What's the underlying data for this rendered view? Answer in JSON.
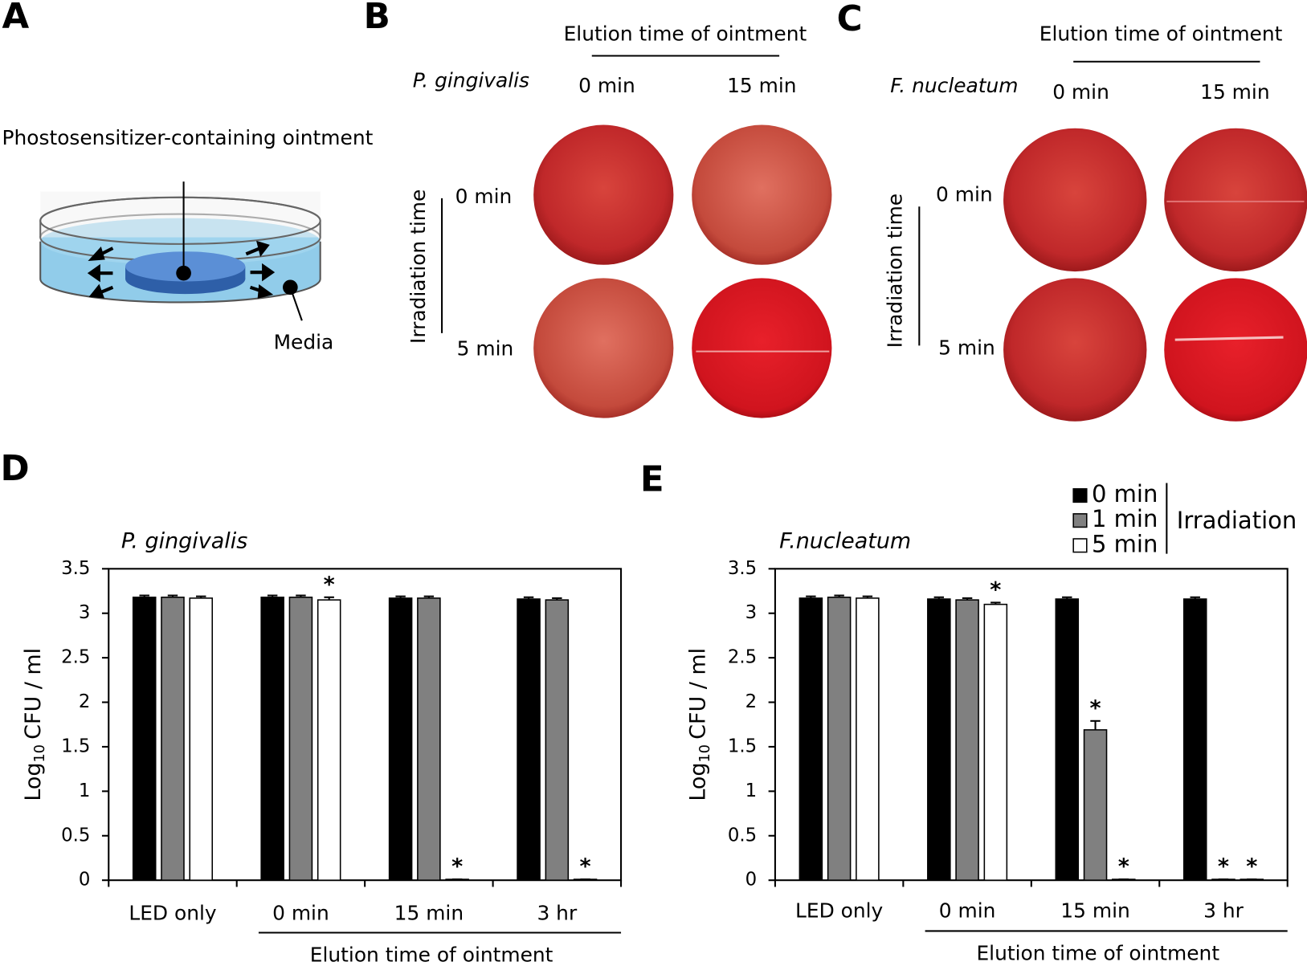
{
  "panel_labels": [
    "A",
    "B",
    "C",
    "D",
    "E"
  ],
  "diagram": {
    "title": "Phostosensitizer-containing ointment",
    "media": "Media"
  },
  "plates": [
    {
      "organism": "P. gingivalis",
      "column_title": "Elution time of ointment",
      "columns": [
        "0 min",
        "15 min"
      ],
      "row_title": "Irradiation time",
      "rows": [
        "0 min",
        "5 min"
      ]
    },
    {
      "organism": "F. nucleatum",
      "column_title": "Elution time of ointment",
      "columns": [
        "0 min",
        "15 min"
      ],
      "row_title": "Irradiation time",
      "rows": [
        "0 min",
        "5 min"
      ]
    }
  ],
  "chart_data": [
    {
      "type": "bar",
      "title": "P. gingivalis",
      "ylabel": {
        "main": "Log",
        "sub": "10",
        "rest": "CFU / ml"
      },
      "categories": [
        "LED only",
        "0 min",
        "15 min",
        "3 hr"
      ],
      "group_label": "Elution time of ointment",
      "ylim": [
        0,
        3.5
      ],
      "yticks": [
        0,
        0.5,
        1,
        1.5,
        2,
        2.5,
        3,
        3.5
      ],
      "legend": false,
      "series": [
        {
          "color": "#000000",
          "values": [
            3.18,
            3.18,
            3.17,
            3.16
          ],
          "errors": [
            0.02,
            0.02,
            0.02,
            0.02
          ],
          "significance": [
            null,
            null,
            null,
            null
          ]
        },
        {
          "color": "#808080",
          "values": [
            3.18,
            3.18,
            3.17,
            3.15
          ],
          "errors": [
            0.02,
            0.02,
            0.02,
            0.02
          ],
          "significance": [
            null,
            null,
            null,
            null
          ]
        },
        {
          "color": "#ffffff",
          "values": [
            3.17,
            3.15,
            0.01,
            0.01
          ],
          "errors": [
            0.02,
            0.03,
            0,
            0
          ],
          "significance": [
            null,
            "*",
            "*",
            "*"
          ]
        }
      ]
    },
    {
      "type": "bar",
      "title": "F.nucleatum",
      "ylabel": {
        "main": "Log",
        "sub": "10",
        "rest": "CFU / ml"
      },
      "categories": [
        "LED only",
        "0 min",
        "15 min",
        "3 hr"
      ],
      "group_label": "Elution time of ointment",
      "ylim": [
        0,
        3.5
      ],
      "yticks": [
        0,
        0.5,
        1,
        1.5,
        2,
        2.5,
        3,
        3.5
      ],
      "legend": true,
      "legend_corner": "top-right",
      "legend_title": "Irradiation",
      "series": [
        {
          "name": "0 min",
          "color": "#000000",
          "values": [
            3.17,
            3.16,
            3.16,
            3.16
          ],
          "errors": [
            0.02,
            0.02,
            0.02,
            0.02
          ],
          "significance": [
            null,
            null,
            null,
            null
          ]
        },
        {
          "name": "1 min",
          "color": "#808080",
          "values": [
            3.18,
            3.15,
            1.69,
            0.01
          ],
          "errors": [
            0.02,
            0.02,
            0.1,
            0
          ],
          "significance": [
            null,
            null,
            "*",
            "*"
          ]
        },
        {
          "name": "5 min",
          "color": "#ffffff",
          "values": [
            3.17,
            3.1,
            0.01,
            0.01
          ],
          "errors": [
            0.02,
            0.02,
            0,
            0
          ],
          "significance": [
            null,
            "*",
            "*",
            "*"
          ]
        }
      ]
    }
  ]
}
